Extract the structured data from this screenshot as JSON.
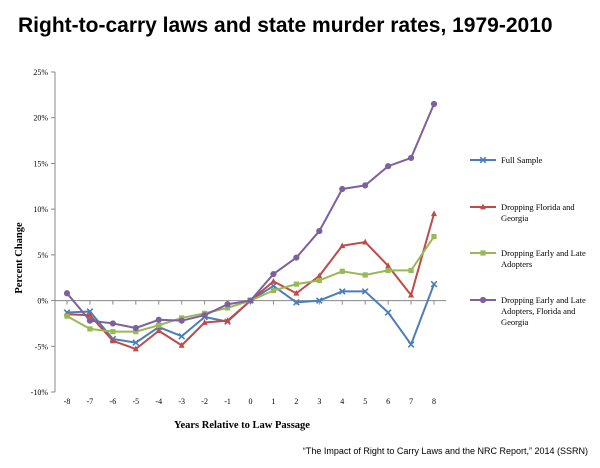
{
  "title": "Right-to-carry laws and state murder rates, 1979-2010",
  "source": "“The Impact of Right to Carry Laws and the NRC Report,” 2014 (SSRN)",
  "chart_data": {
    "type": "line",
    "title": "Right-to-carry laws and state murder rates, 1979-2010",
    "xlabel": "Years Relative to Law Passage",
    "ylabel": "Percent Change",
    "x": [
      -8,
      -7,
      -6,
      -5,
      -4,
      -3,
      -2,
      -1,
      0,
      1,
      2,
      3,
      4,
      5,
      6,
      7,
      8
    ],
    "x_tick_labels": [
      "-8",
      "-7",
      "-6",
      "-5",
      "-4",
      "-3",
      "-2",
      "-1",
      "0",
      "1",
      "2",
      "3",
      "4",
      "5",
      "6",
      "7",
      "8"
    ],
    "ylim": [
      -10,
      25
    ],
    "y_ticks": [
      -10,
      -5,
      0,
      5,
      10,
      15,
      20,
      25
    ],
    "y_tick_labels": [
      "-10%",
      "-5%",
      "0%",
      "5%",
      "10%",
      "15%",
      "20%",
      "25%"
    ],
    "grid": false,
    "legend_position": "right",
    "series": [
      {
        "name": "Full Sample",
        "color": "#4a7ebb",
        "marker": "x",
        "values": [
          -1.3,
          -1.2,
          -4.2,
          -4.6,
          -2.9,
          -3.9,
          -1.8,
          -2.3,
          0.0,
          1.6,
          -0.2,
          0.0,
          1.0,
          1.0,
          -1.3,
          -4.8,
          1.8
        ]
      },
      {
        "name": "Dropping Florida and Georgia",
        "color": "#be4b48",
        "marker": "triangle",
        "values": [
          -1.5,
          -1.6,
          -4.4,
          -5.3,
          -3.3,
          -4.9,
          -2.4,
          -2.2,
          0.0,
          2.1,
          0.8,
          2.7,
          6.0,
          6.4,
          3.8,
          0.6,
          9.5
        ]
      },
      {
        "name": "Dropping Early and Late Adopters",
        "color": "#98b954",
        "marker": "square",
        "values": [
          -1.7,
          -3.1,
          -3.4,
          -3.4,
          -2.7,
          -1.9,
          -1.4,
          -0.8,
          0.0,
          1.1,
          1.8,
          2.2,
          3.2,
          2.8,
          3.3,
          3.3,
          7.0
        ]
      },
      {
        "name": "Dropping Early and Late Adopters, Florida and Georgia",
        "color": "#7d60a0",
        "marker": "circle",
        "values": [
          0.8,
          -2.2,
          -2.5,
          -3.0,
          -2.1,
          -2.2,
          -1.6,
          -0.4,
          0.0,
          2.9,
          4.7,
          7.6,
          12.2,
          12.6,
          14.7,
          15.6,
          21.5
        ]
      }
    ],
    "legend_lines": [
      [
        "Full Sample"
      ],
      [
        "Dropping Florida and",
        "Georgia"
      ],
      [
        "Dropping Early and Late",
        "Adopters"
      ],
      [
        "Dropping Early and Late",
        "Adopters, Florida and",
        "Georgia"
      ]
    ]
  }
}
